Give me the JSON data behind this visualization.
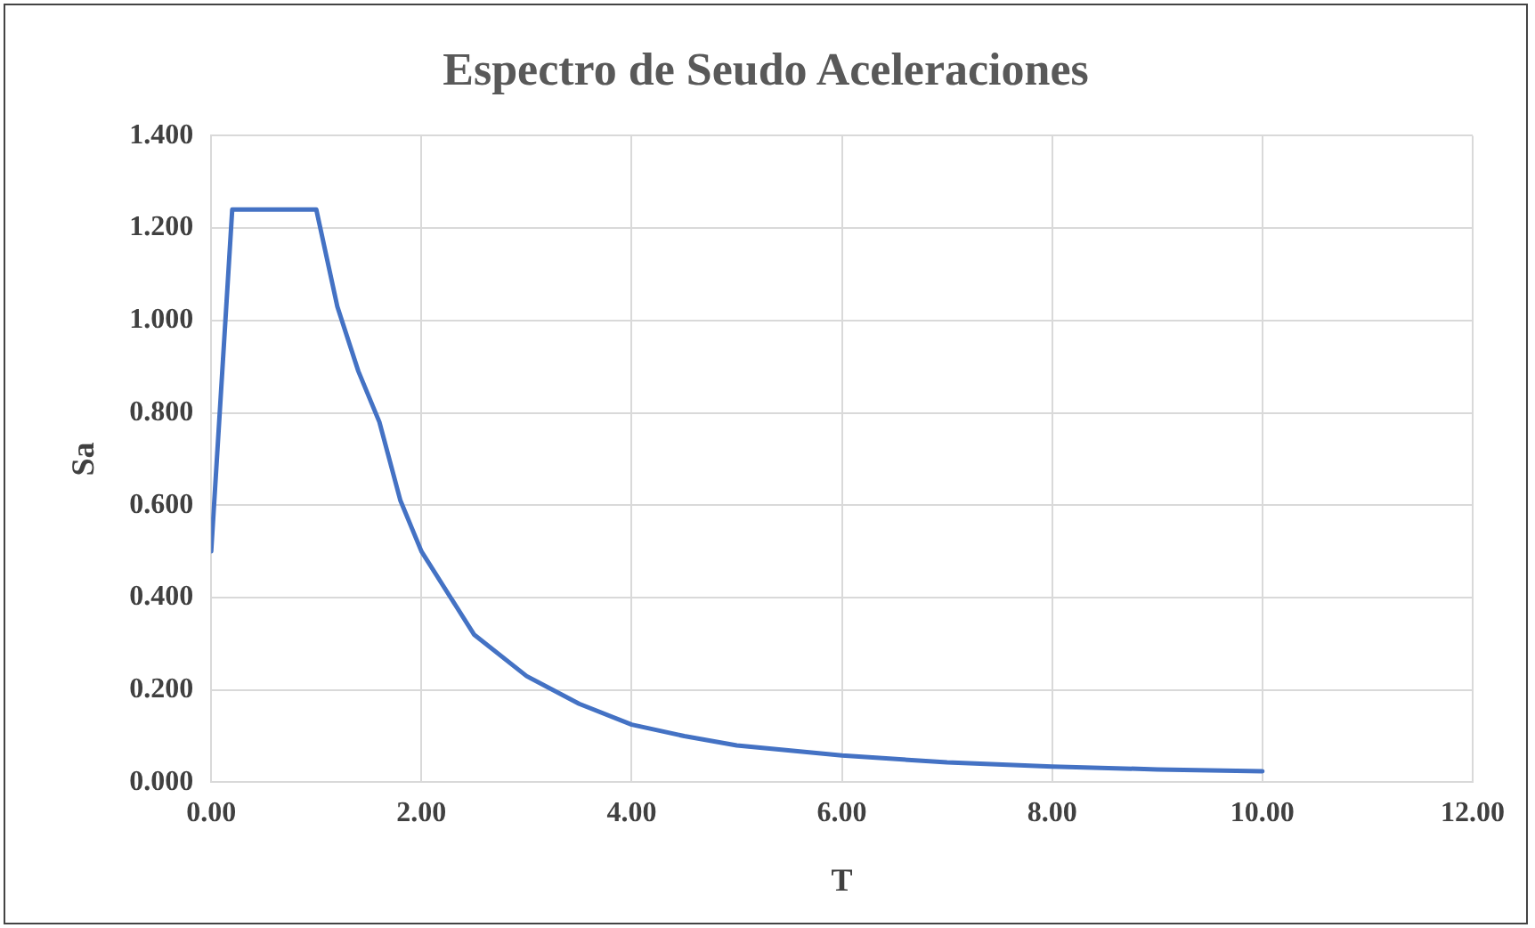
{
  "chart_data": {
    "type": "line",
    "title": "Espectro de Seudo Aceleraciones",
    "xlabel": "T",
    "ylabel": "Sa",
    "x": [
      0,
      0.2,
      1.0,
      1.2,
      1.4,
      1.6,
      1.8,
      2.0,
      2.5,
      3.0,
      3.5,
      4.0,
      4.5,
      5,
      6,
      7,
      8,
      9,
      10
    ],
    "series": [
      {
        "color": "#4472c4",
        "values": [
          0.5,
          1.24,
          1.24,
          1.03,
          0.89,
          0.78,
          0.61,
          0.5,
          0.32,
          0.23,
          0.17,
          0.125,
          0.1,
          0.08,
          0.058,
          0.043,
          0.034,
          0.028,
          0.024
        ]
      }
    ],
    "xlim": [
      0,
      12
    ],
    "xticks": [
      {
        "value": 0,
        "label": "0.00"
      },
      {
        "value": 2,
        "label": "2.00"
      },
      {
        "value": 4,
        "label": "4.00"
      },
      {
        "value": 6,
        "label": "6.00"
      },
      {
        "value": 8,
        "label": "8.00"
      },
      {
        "value": 10,
        "label": "10.00"
      },
      {
        "value": 12,
        "label": "12.00"
      }
    ],
    "ylim": [
      0,
      1.4
    ],
    "yticks": [
      {
        "value": 0,
        "label": "0.000"
      },
      {
        "value": 0.2,
        "label": "0.200"
      },
      {
        "value": 0.4,
        "label": "0.400"
      },
      {
        "value": 0.6,
        "label": "0.600"
      },
      {
        "value": 0.8,
        "label": "0.800"
      },
      {
        "value": 1.0,
        "label": "1.000"
      },
      {
        "value": 1.2,
        "label": "1.200"
      },
      {
        "value": 1.4,
        "label": "1.400"
      }
    ],
    "grid": true,
    "legend": false,
    "marker": "none",
    "line_style": "solid"
  }
}
